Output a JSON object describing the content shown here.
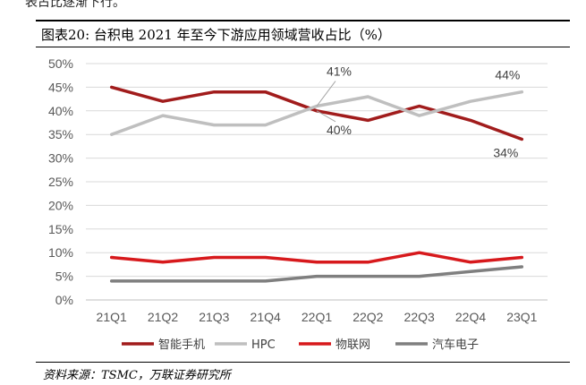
{
  "header_cut_text": "表占比逐渐下行。",
  "title": "图表20:  台积电 2021 年至今下游应用领域营收占比（%）",
  "source": "资料来源：TSMC，万联证券研究所",
  "chart_data": {
    "type": "line",
    "title": "台积电 2021 年至今下游应用领域营收占比（%）",
    "xlabel": "",
    "ylabel": "",
    "categories": [
      "21Q1",
      "21Q2",
      "21Q3",
      "21Q4",
      "22Q1",
      "22Q2",
      "22Q3",
      "22Q4",
      "23Q1"
    ],
    "y_ticks": [
      "0%",
      "5%",
      "10%",
      "15%",
      "20%",
      "25%",
      "30%",
      "35%",
      "40%",
      "45%",
      "50%"
    ],
    "ylim": [
      0,
      50
    ],
    "grid": true,
    "legend_position": "bottom",
    "series": [
      {
        "name": "智能手机",
        "color": "#a11c1c",
        "values": [
          45,
          42,
          44,
          44,
          40,
          38,
          41,
          38,
          34
        ]
      },
      {
        "name": "HPC",
        "color": "#bfbfbf",
        "values": [
          35,
          39,
          37,
          37,
          41,
          43,
          39,
          42,
          44
        ]
      },
      {
        "name": "物联网",
        "color": "#d7191c",
        "values": [
          9,
          8,
          9,
          9,
          8,
          8,
          10,
          8,
          9
        ]
      },
      {
        "name": "汽车电子",
        "color": "#7f7f7f",
        "values": [
          4,
          4,
          4,
          4,
          5,
          5,
          5,
          6,
          7
        ]
      }
    ],
    "annotations": [
      {
        "text": "41%",
        "series": "HPC",
        "category": "22Q1"
      },
      {
        "text": "40%",
        "series": "智能手机",
        "category": "22Q1"
      },
      {
        "text": "44%",
        "series": "HPC",
        "category": "23Q1"
      },
      {
        "text": "34%",
        "series": "智能手机",
        "category": "23Q1"
      }
    ]
  }
}
